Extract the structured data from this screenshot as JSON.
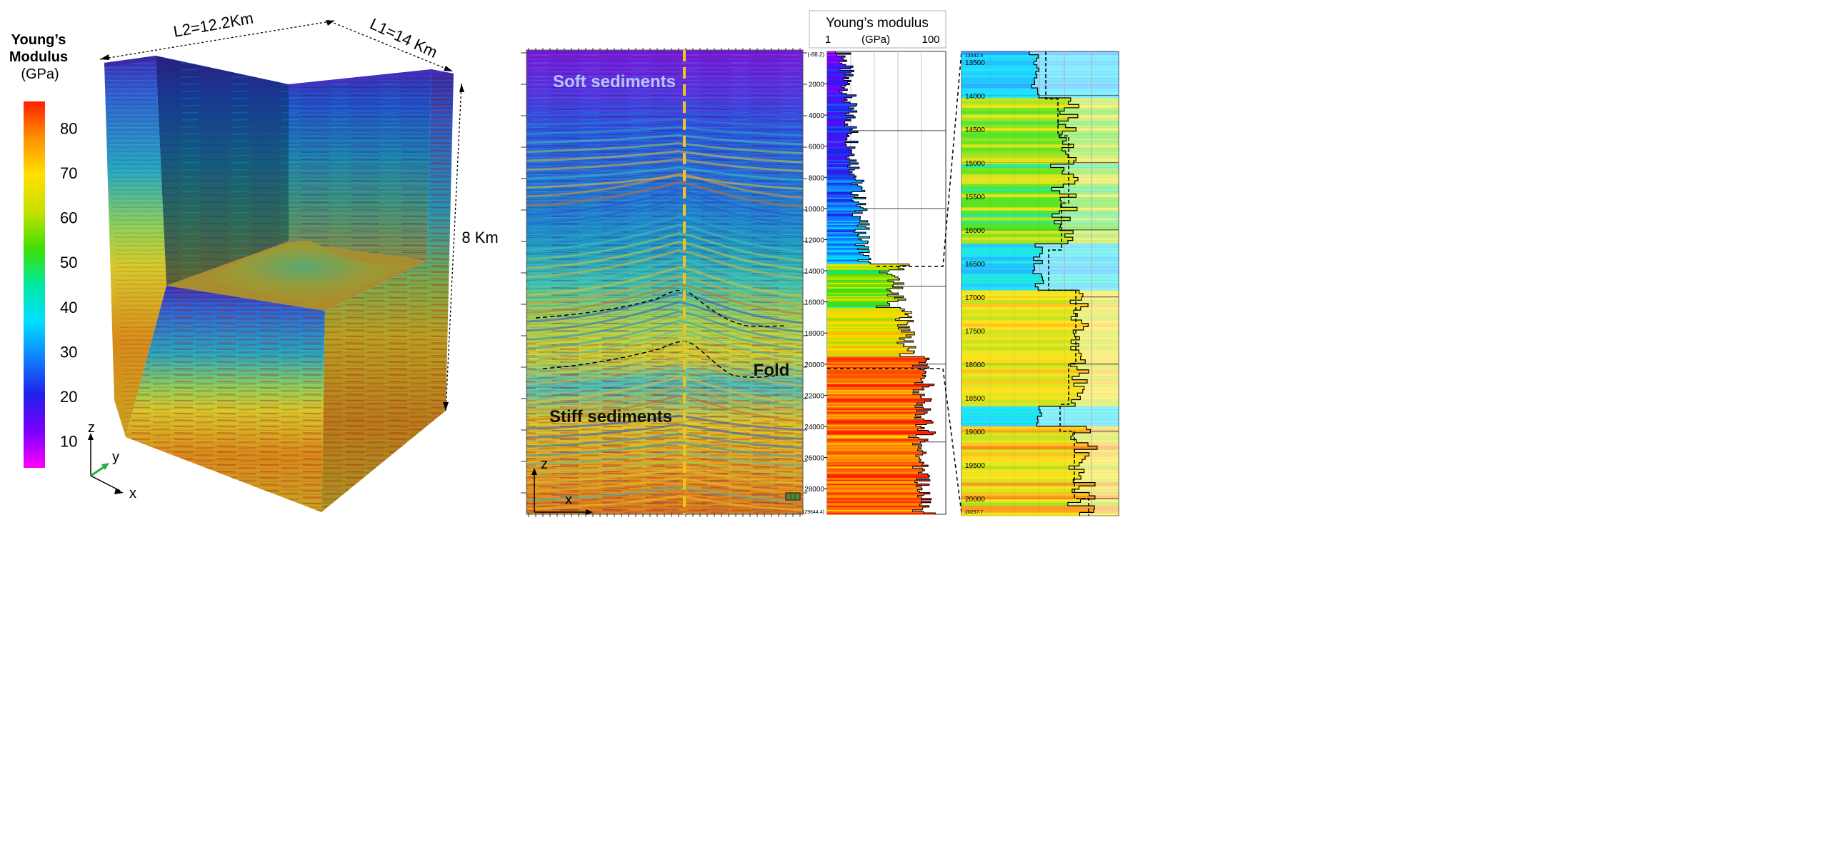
{
  "colorbar": {
    "title_line1": "Young’s",
    "title_line2": "Modulus",
    "unit": "(GPa)",
    "ticks": [
      "80",
      "70",
      "60",
      "50",
      "40",
      "30",
      "20",
      "10"
    ],
    "tick_values": [
      80,
      70,
      60,
      50,
      40,
      30,
      20,
      10
    ],
    "range": [
      4,
      86
    ],
    "stops": [
      "#ff00ff",
      "#7a00ff",
      "#2020e8",
      "#1080ff",
      "#00e0ff",
      "#00e8a0",
      "#40e000",
      "#c8e000",
      "#ffe000",
      "#ff9000",
      "#ff2000"
    ]
  },
  "cube": {
    "label_l2": "L2=12.2Km",
    "label_l1": "L1=14 Km",
    "label_depth": "8 Km",
    "axis_z": "z",
    "axis_y": "y",
    "axis_x": "x"
  },
  "section": {
    "label_soft": "Soft sediments",
    "label_stiff": "Stiff sediments",
    "label_fold": "Fold",
    "axis_z": "z",
    "axis_x": "x"
  },
  "log": {
    "title": "Young’s modulus",
    "scale_min": "1",
    "scale_unit": "(GPa)",
    "scale_max": "100",
    "top_value": "(-88.2)",
    "bottom_value": "(29644.4)",
    "depth_ticks": [
      "2000",
      "4000",
      "6000",
      "8000",
      "10000",
      "12000",
      "14000",
      "16000",
      "18000",
      "20000",
      "22000",
      "24000",
      "26000",
      "28000"
    ],
    "depth_range": [
      -88.2,
      29644.4
    ]
  },
  "zoom": {
    "top_value": "13342.4",
    "bottom_value": "20257.7",
    "depth_ticks": [
      "13500",
      "14000",
      "14500",
      "15000",
      "15500",
      "16000",
      "16500",
      "17000",
      "17500",
      "18000",
      "18500",
      "19000",
      "19500",
      "20000"
    ],
    "depth_range": [
      13342.4,
      20257.7
    ]
  }
}
